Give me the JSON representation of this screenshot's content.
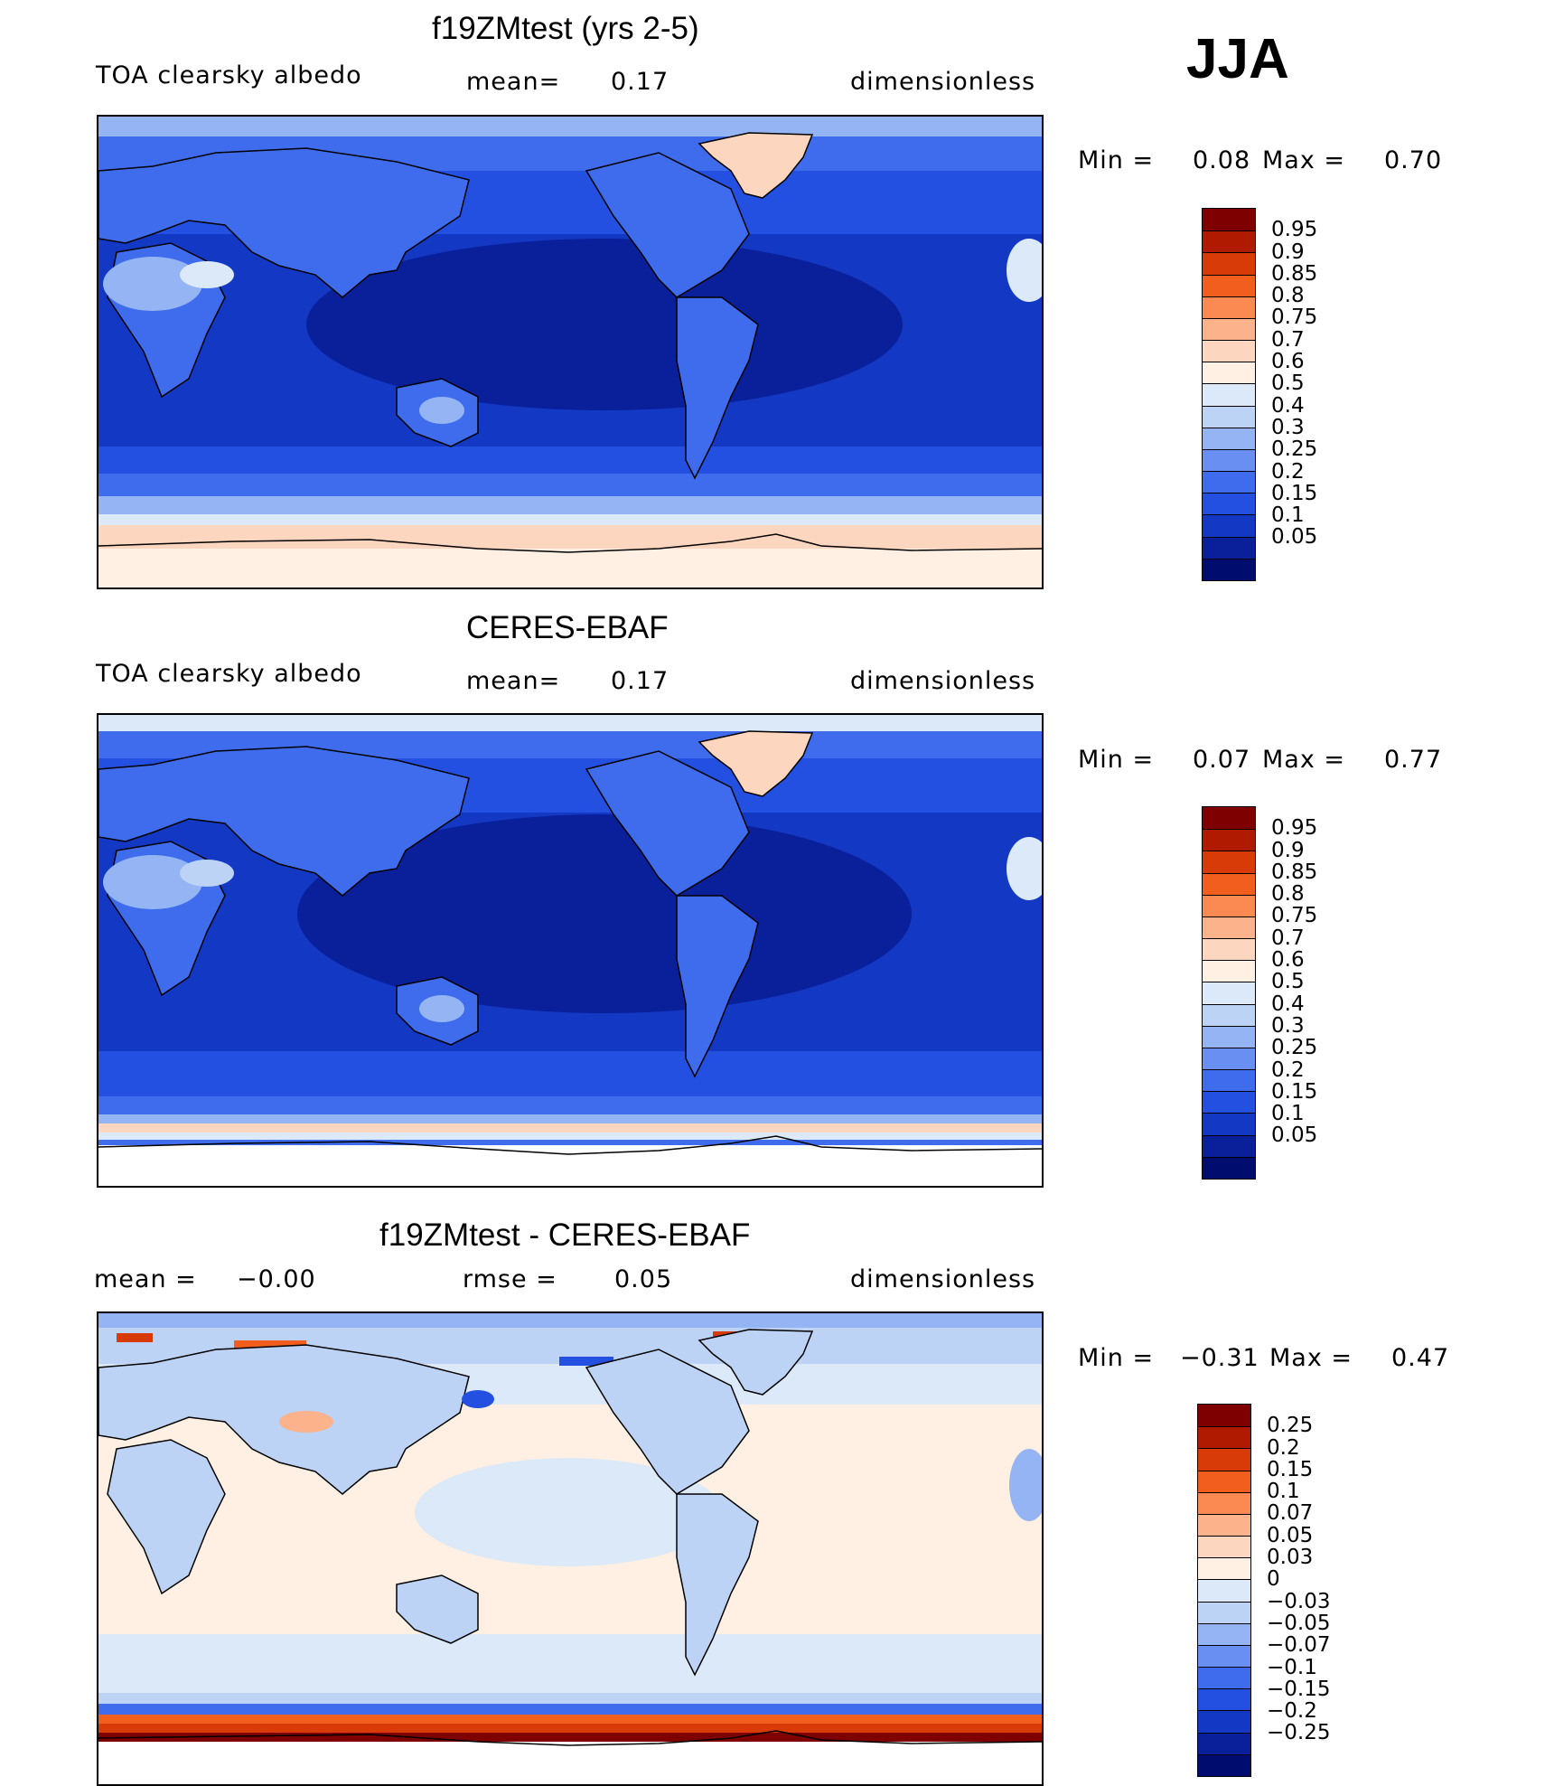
{
  "season": "JJA",
  "panels": [
    {
      "title": "f19ZMtest (yrs 2-5)",
      "left_label": "TOA clearsky albedo",
      "mid_label": "mean=",
      "mid_value": "0.17",
      "units": "dimensionless",
      "min_label": "Min =",
      "min_value": "0.08",
      "max_label": "Max =",
      "max_value": "0.70",
      "colorbar_labels": [
        "0.95",
        "0.9",
        "0.85",
        "0.8",
        "0.75",
        "0.7",
        "0.6",
        "0.5",
        "0.4",
        "0.3",
        "0.25",
        "0.2",
        "0.15",
        "0.1",
        "0.05"
      ],
      "colorbar_colors": [
        "#7f0000",
        "#b01a00",
        "#d83a08",
        "#f25e1e",
        "#fb8a52",
        "#fcb28a",
        "#fdd6bf",
        "#fff0e3",
        "#dce9f8",
        "#bdd3f5",
        "#94b4f3",
        "#6a8ff2",
        "#3e6cec",
        "#2350e0",
        "#1238c4",
        "#0a1f9a",
        "#000c6e"
      ]
    },
    {
      "title": "CERES-EBAF",
      "left_label": "TOA clearsky albedo",
      "mid_label": "mean=",
      "mid_value": "0.17",
      "units": "dimensionless",
      "min_label": "Min =",
      "min_value": "0.07",
      "max_label": "Max =",
      "max_value": "0.77",
      "colorbar_labels": [
        "0.95",
        "0.9",
        "0.85",
        "0.8",
        "0.75",
        "0.7",
        "0.6",
        "0.5",
        "0.4",
        "0.3",
        "0.25",
        "0.2",
        "0.15",
        "0.1",
        "0.05"
      ],
      "colorbar_colors": [
        "#7f0000",
        "#b01a00",
        "#d83a08",
        "#f25e1e",
        "#fb8a52",
        "#fcb28a",
        "#fdd6bf",
        "#fff0e3",
        "#dce9f8",
        "#bdd3f5",
        "#94b4f3",
        "#6a8ff2",
        "#3e6cec",
        "#2350e0",
        "#1238c4",
        "#0a1f9a",
        "#000c6e"
      ]
    },
    {
      "title": "f19ZMtest - CERES-EBAF",
      "left_label": "mean =",
      "left_value": "−0.00",
      "mid_label": "rmse =",
      "mid_value": "0.05",
      "units": "dimensionless",
      "min_label": "Min =",
      "min_value": "−0.31",
      "max_label": "Max =",
      "max_value": "0.47",
      "colorbar_labels": [
        "0.25",
        "0.2",
        "0.15",
        "0.1",
        "0.07",
        "0.05",
        "0.03",
        "0",
        "−0.03",
        "−0.05",
        "−0.07",
        "−0.1",
        "−0.15",
        "−0.2",
        "−0.25"
      ],
      "colorbar_colors": [
        "#7f0000",
        "#b01a00",
        "#d83a08",
        "#f25e1e",
        "#fb8a52",
        "#fcb28a",
        "#fdd6bf",
        "#fff0e3",
        "#dce9f8",
        "#bdd3f5",
        "#94b4f3",
        "#6a8ff2",
        "#3e6cec",
        "#2350e0",
        "#1238c4",
        "#0a1f9a",
        "#000c6e"
      ]
    }
  ]
}
